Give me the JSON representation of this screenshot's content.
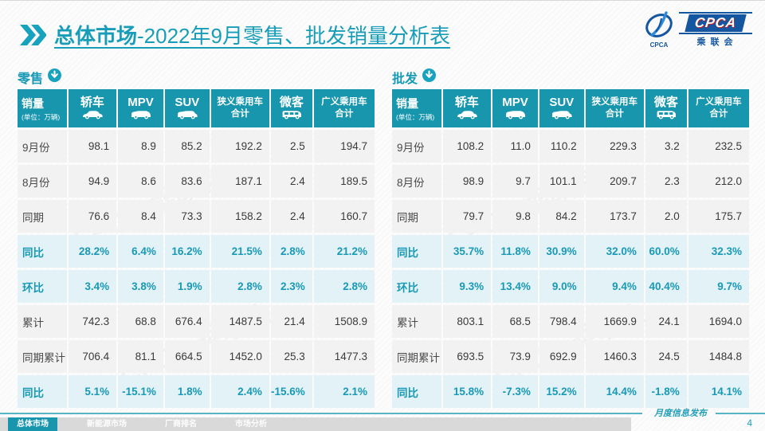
{
  "header": {
    "title_bold": "总体市场",
    "title_rest": "-2022年9月零售、批发销量分析表"
  },
  "logo": {
    "acronym": "CPCA",
    "cn_name": "乘联会",
    "emblem_text": "CPCA"
  },
  "tables": [
    {
      "label": "零售",
      "unit_line1": "销量",
      "unit_line2": "(单位：万辆)",
      "columns": [
        {
          "label": "轿车",
          "icon": "sedan-icon"
        },
        {
          "label": "MPV",
          "icon": "mpv-icon"
        },
        {
          "label": "SUV",
          "icon": "suv-icon"
        },
        {
          "label": "狭义乘用车",
          "label2": "合计"
        },
        {
          "label": "微客",
          "icon": "van-icon"
        },
        {
          "label": "广义乘用车",
          "label2": "合计"
        }
      ],
      "rows": [
        {
          "label": "9月份",
          "highlight": false,
          "values": [
            "98.1",
            "8.9",
            "85.2",
            "192.2",
            "2.5",
            "194.7"
          ]
        },
        {
          "label": "8月份",
          "highlight": false,
          "values": [
            "94.9",
            "8.6",
            "83.6",
            "187.1",
            "2.4",
            "189.5"
          ]
        },
        {
          "label": "同期",
          "highlight": false,
          "values": [
            "76.6",
            "8.4",
            "73.3",
            "158.2",
            "2.4",
            "160.7"
          ]
        },
        {
          "label": "同比",
          "highlight": true,
          "values": [
            "28.2%",
            "6.4%",
            "16.2%",
            "21.5%",
            "2.8%",
            "21.2%"
          ]
        },
        {
          "label": "环比",
          "highlight": true,
          "values": [
            "3.4%",
            "3.8%",
            "1.9%",
            "2.8%",
            "2.3%",
            "2.8%"
          ]
        },
        {
          "label": "累计",
          "highlight": false,
          "values": [
            "742.3",
            "68.8",
            "676.4",
            "1487.5",
            "21.4",
            "1508.9"
          ]
        },
        {
          "label": "同期累计",
          "highlight": false,
          "values": [
            "706.4",
            "81.1",
            "664.5",
            "1452.0",
            "25.3",
            "1477.3"
          ]
        },
        {
          "label": "同比",
          "highlight": true,
          "values": [
            "5.1%",
            "-15.1%",
            "1.8%",
            "2.4%",
            "-15.6%",
            "2.1%"
          ]
        }
      ]
    },
    {
      "label": "批发",
      "unit_line1": "销量",
      "unit_line2": "(单位：万辆)",
      "columns": [
        {
          "label": "轿车",
          "icon": "sedan-icon"
        },
        {
          "label": "MPV",
          "icon": "mpv-icon"
        },
        {
          "label": "SUV",
          "icon": "suv-icon"
        },
        {
          "label": "狭义乘用车",
          "label2": "合计"
        },
        {
          "label": "微客",
          "icon": "van-icon"
        },
        {
          "label": "广义乘用车",
          "label2": "合计"
        }
      ],
      "rows": [
        {
          "label": "9月份",
          "highlight": false,
          "values": [
            "108.2",
            "11.0",
            "110.2",
            "229.3",
            "3.2",
            "232.5"
          ]
        },
        {
          "label": "8月份",
          "highlight": false,
          "values": [
            "98.9",
            "9.7",
            "101.1",
            "209.7",
            "2.3",
            "212.0"
          ]
        },
        {
          "label": "同期",
          "highlight": false,
          "values": [
            "79.7",
            "9.8",
            "84.2",
            "173.7",
            "2.0",
            "175.7"
          ]
        },
        {
          "label": "同比",
          "highlight": true,
          "values": [
            "35.7%",
            "11.8%",
            "30.9%",
            "32.0%",
            "60.0%",
            "32.3%"
          ]
        },
        {
          "label": "环比",
          "highlight": true,
          "values": [
            "9.3%",
            "13.4%",
            "9.0%",
            "9.4%",
            "40.4%",
            "9.7%"
          ]
        },
        {
          "label": "累计",
          "highlight": false,
          "values": [
            "803.1",
            "68.5",
            "798.4",
            "1669.9",
            "24.1",
            "1694.0"
          ]
        },
        {
          "label": "同期累计",
          "highlight": false,
          "values": [
            "693.5",
            "73.9",
            "692.9",
            "1460.3",
            "24.5",
            "1484.8"
          ]
        },
        {
          "label": "同比",
          "highlight": true,
          "values": [
            "15.8%",
            "-7.3%",
            "15.2%",
            "14.4%",
            "-1.8%",
            "14.1%"
          ]
        }
      ]
    }
  ],
  "footer": {
    "note": "月度信息发布",
    "page_number": "4",
    "tabs": [
      {
        "label": "总体市场",
        "active": true
      },
      {
        "label": "新能源市场",
        "active": false
      },
      {
        "label": "厂商排名",
        "active": false
      },
      {
        "label": "市场分析",
        "active": false
      }
    ]
  },
  "watermark": "CPCA 乘联会"
}
